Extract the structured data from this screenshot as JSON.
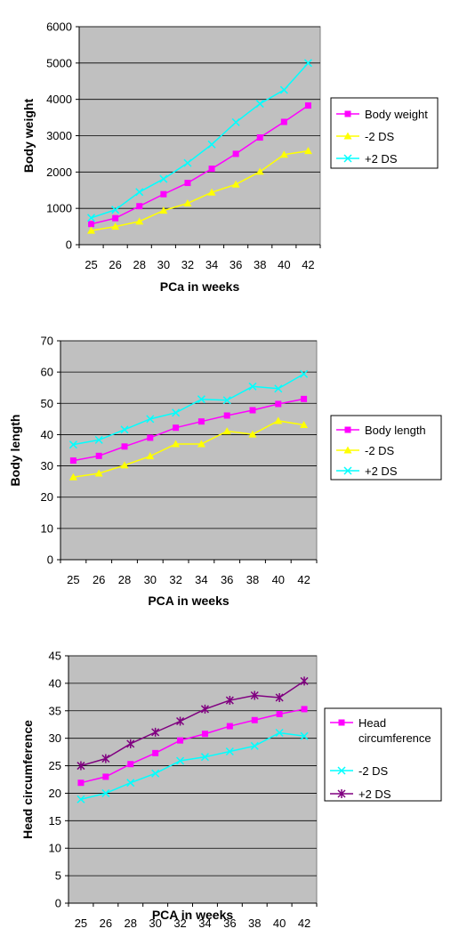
{
  "chart_data": [
    {
      "type": "line",
      "categories": [
        "25",
        "26",
        "28",
        "30",
        "32",
        "34",
        "36",
        "38",
        "40",
        "42"
      ],
      "xlabel": "PCa in weeks",
      "ylabel": "Body weight",
      "ylim": [
        0,
        6000
      ],
      "yticks": [
        "0",
        "1000",
        "2000",
        "3000",
        "4000",
        "5000",
        "6000"
      ],
      "grid": true,
      "legend_position": "right",
      "series": [
        {
          "name": "Body weight",
          "color": "#ff00ff",
          "marker": "square",
          "values": [
            570,
            730,
            1060,
            1390,
            1700,
            2090,
            2500,
            2950,
            3380,
            3830
          ]
        },
        {
          "name": "-2 DS",
          "color": "#ffff00",
          "marker": "triangle",
          "values": [
            390,
            500,
            640,
            940,
            1140,
            1440,
            1660,
            2010,
            2480,
            2580
          ]
        },
        {
          "name": "+2 DS",
          "color": "#00ffff",
          "marker": "x",
          "values": [
            740,
            960,
            1450,
            1810,
            2250,
            2760,
            3370,
            3880,
            4260,
            5000
          ]
        }
      ]
    },
    {
      "type": "line",
      "categories": [
        "25",
        "26",
        "28",
        "30",
        "32",
        "34",
        "36",
        "38",
        "40",
        "42"
      ],
      "xlabel": "PCA in weeks",
      "ylabel": "Body length",
      "ylim": [
        0,
        70
      ],
      "yticks": [
        "0",
        "10",
        "20",
        "30",
        "40",
        "50",
        "60",
        "70"
      ],
      "grid": true,
      "legend_position": "right",
      "series": [
        {
          "name": "Body length",
          "color": "#ff00ff",
          "marker": "square",
          "values": [
            31.7,
            33.2,
            36.2,
            39.0,
            42.2,
            44.2,
            46.1,
            47.8,
            49.8,
            51.4
          ]
        },
        {
          "name": "-2 DS",
          "color": "#ffff00",
          "marker": "triangle",
          "values": [
            26.4,
            27.6,
            30.2,
            33.1,
            37.0,
            37.0,
            41.1,
            40.1,
            44.4,
            43.1
          ]
        },
        {
          "name": "+2 DS",
          "color": "#00ffff",
          "marker": "x",
          "values": [
            36.8,
            38.3,
            41.6,
            45.0,
            47.0,
            51.3,
            51.0,
            55.4,
            54.7,
            59.4
          ]
        }
      ]
    },
    {
      "type": "line",
      "categories": [
        "25",
        "26",
        "28",
        "30",
        "32",
        "34",
        "36",
        "38",
        "40",
        "42"
      ],
      "xlabel": "PCA in weeks",
      "ylabel": "Head circumference",
      "ylim": [
        0,
        45
      ],
      "yticks": [
        "0",
        "5",
        "10",
        "15",
        "20",
        "25",
        "30",
        "35",
        "40",
        "45"
      ],
      "grid": true,
      "legend_position": "right",
      "series": [
        {
          "name": "Head circumference",
          "color": "#ff00ff",
          "marker": "square",
          "values": [
            21.9,
            23.0,
            25.3,
            27.3,
            29.6,
            30.8,
            32.2,
            33.3,
            34.4,
            35.3
          ],
          "legend_lines": [
            "Head",
            "circumference"
          ]
        },
        {
          "name": "-2 DS",
          "color": "#00ffff",
          "marker": "x",
          "values": [
            18.9,
            20.0,
            21.9,
            23.6,
            25.9,
            26.6,
            27.6,
            28.6,
            31.0,
            30.4
          ]
        },
        {
          "name": "+2 DS",
          "color": "#800080",
          "marker": "star",
          "values": [
            25.0,
            26.3,
            29.0,
            31.1,
            33.1,
            35.3,
            36.9,
            37.8,
            37.4,
            40.4
          ]
        }
      ]
    }
  ]
}
